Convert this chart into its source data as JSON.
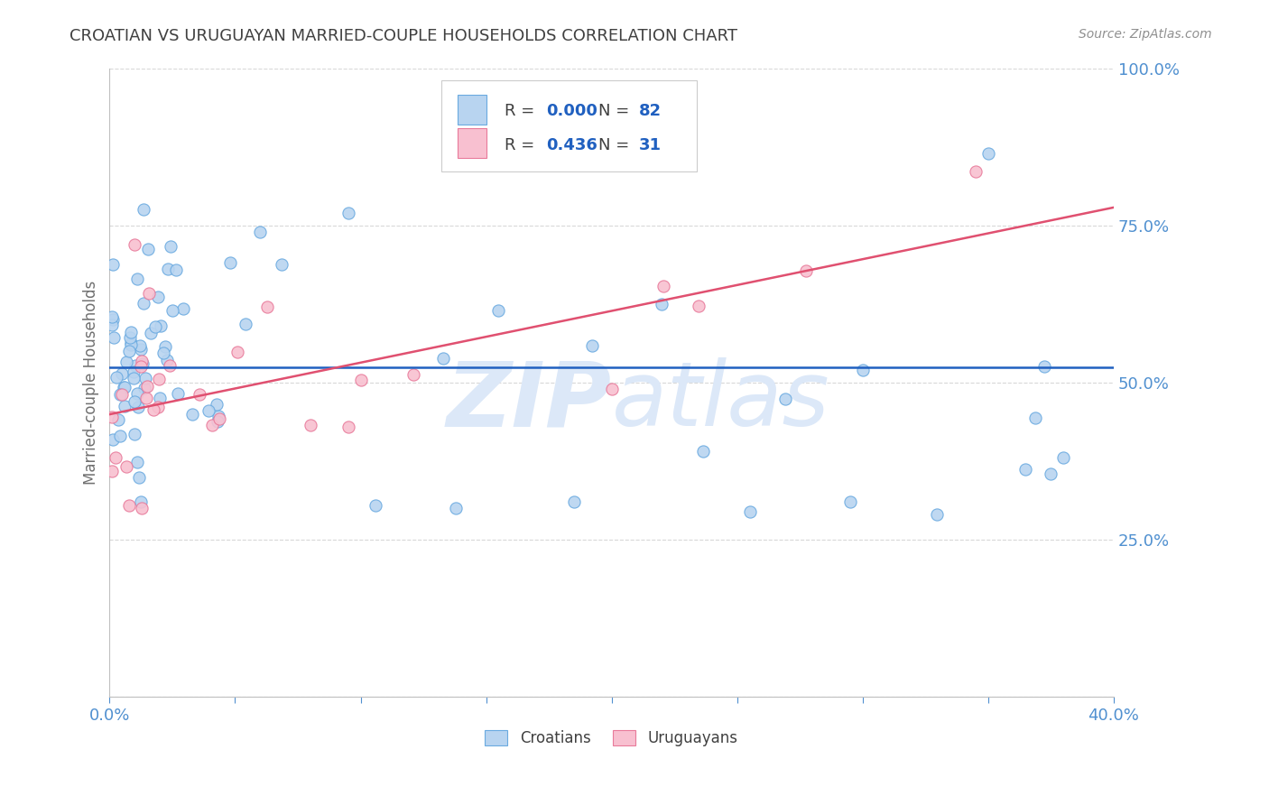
{
  "title": "CROATIAN VS URUGUAYAN MARRIED-COUPLE HOUSEHOLDS CORRELATION CHART",
  "source": "Source: ZipAtlas.com",
  "ylabel": "Married-couple Households",
  "xlim": [
    0,
    0.4
  ],
  "ylim": [
    0,
    1.0
  ],
  "ytick_positions": [
    0.0,
    0.25,
    0.5,
    0.75,
    1.0
  ],
  "ytick_labels": [
    "",
    "25.0%",
    "50.0%",
    "75.0%",
    "100.0%"
  ],
  "xtick_positions": [
    0.0,
    0.05,
    0.1,
    0.15,
    0.2,
    0.25,
    0.3,
    0.35,
    0.4
  ],
  "xtick_labels": [
    "0.0%",
    "",
    "",
    "",
    "",
    "",
    "",
    "",
    "40.0%"
  ],
  "croatian_R": "0.000",
  "croatian_N": "82",
  "uruguayan_R": "0.436",
  "uruguayan_N": "31",
  "blue_scatter_face": "#b8d4f0",
  "blue_scatter_edge": "#6aaae0",
  "pink_scatter_face": "#f8c0d0",
  "pink_scatter_edge": "#e87a9a",
  "blue_line_color": "#2060c0",
  "pink_line_color": "#e05070",
  "grid_color": "#d8d8d8",
  "text_color": "#5090d0",
  "title_color": "#404040",
  "source_color": "#909090",
  "watermark_color": "#dce8f8",
  "background_color": "#ffffff"
}
